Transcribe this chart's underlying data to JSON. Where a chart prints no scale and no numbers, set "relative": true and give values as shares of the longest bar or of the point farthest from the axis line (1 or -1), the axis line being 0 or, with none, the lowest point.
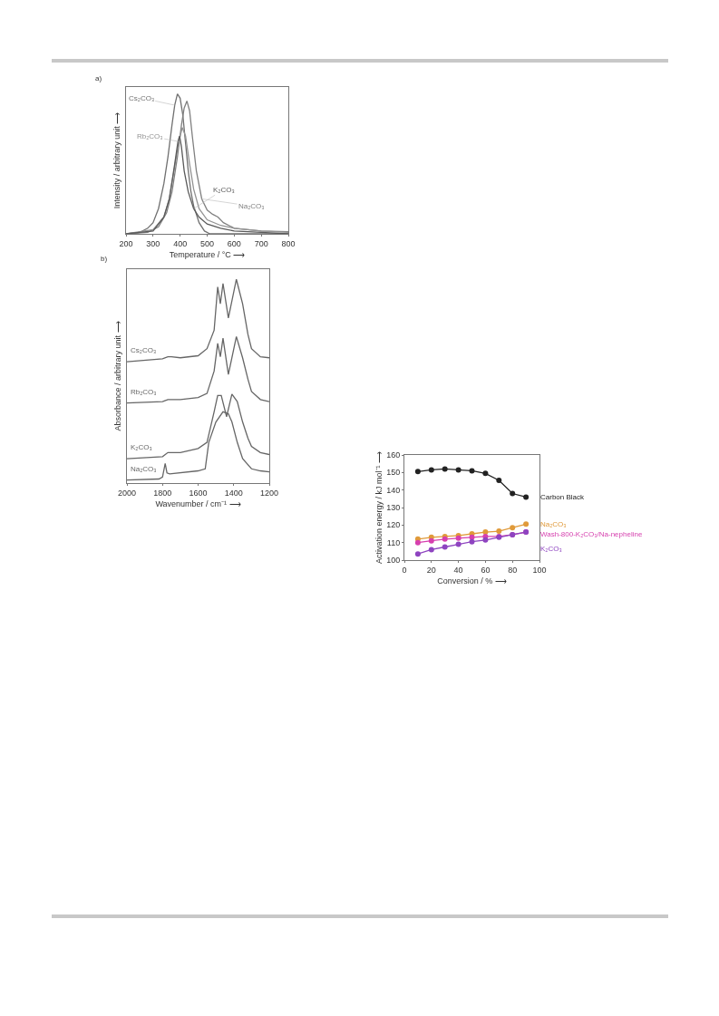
{
  "chart_data": [
    {
      "type": "line",
      "relative": true,
      "legend": false,
      "grid": false,
      "xlabel": "Temperature / °C ⟶",
      "ylabel": "Intensity / arbitrary unit ⟶",
      "xlim": [
        200,
        800
      ],
      "xticks": [
        200,
        300,
        400,
        500,
        600,
        700,
        800
      ],
      "annotations": [
        "a)"
      ],
      "series": [
        {
          "name": "Cs₂CO₃",
          "color": "#707070",
          "x": [
            200,
            250,
            280,
            300,
            320,
            340,
            355,
            370,
            380,
            390,
            400,
            410,
            420,
            430,
            440,
            450,
            470,
            490,
            510,
            800
          ],
          "values": [
            0,
            0.01,
            0.04,
            0.08,
            0.18,
            0.36,
            0.55,
            0.78,
            0.92,
            1,
            0.97,
            0.85,
            0.65,
            0.45,
            0.3,
            0.2,
            0.08,
            0.02,
            0,
            0
          ]
        },
        {
          "name": "Na₂CO₃",
          "color": "#808080",
          "x": [
            200,
            280,
            320,
            350,
            370,
            390,
            405,
            415,
            425,
            435,
            445,
            460,
            480,
            500,
            520,
            540,
            560,
            600,
            700,
            800
          ],
          "values": [
            0,
            0.01,
            0.05,
            0.15,
            0.3,
            0.55,
            0.78,
            0.9,
            0.95,
            0.88,
            0.7,
            0.45,
            0.25,
            0.17,
            0.14,
            0.12,
            0.08,
            0.04,
            0.02,
            0.015
          ]
        },
        {
          "name": "Rb₂CO₃",
          "color": "#939393",
          "x": [
            200,
            300,
            340,
            360,
            380,
            395,
            408,
            420,
            435,
            450,
            470,
            500,
            550,
            600,
            700,
            800
          ],
          "values": [
            0,
            0.03,
            0.12,
            0.25,
            0.48,
            0.66,
            0.76,
            0.7,
            0.5,
            0.32,
            0.18,
            0.1,
            0.06,
            0.04,
            0.02,
            0.01
          ]
        },
        {
          "name": "K₂CO₃",
          "color": "#5a5a5a",
          "x": [
            200,
            300,
            340,
            360,
            380,
            392,
            398,
            405,
            415,
            430,
            450,
            470,
            500,
            550,
            600,
            700,
            800
          ],
          "values": [
            0,
            0.02,
            0.12,
            0.25,
            0.5,
            0.66,
            0.7,
            0.62,
            0.45,
            0.3,
            0.18,
            0.12,
            0.07,
            0.04,
            0.02,
            0.01,
            0
          ]
        }
      ]
    },
    {
      "type": "line",
      "relative": true,
      "legend": false,
      "grid": false,
      "xlabel": "Wavenumber / cm⁻¹ ⟶",
      "ylabel": "Absorbance / arbitrary unit ⟶",
      "xlim": [
        2000,
        1200
      ],
      "xticks": [
        2000,
        1800,
        1600,
        1400,
        1200
      ],
      "annotations": [
        "b)"
      ],
      "series": [
        {
          "name": "Cs₂CO₃",
          "color": "#666666",
          "x": [
            2000,
            1800,
            1770,
            1750,
            1700,
            1600,
            1550,
            1510,
            1490,
            1475,
            1460,
            1430,
            1385,
            1350,
            1320,
            1300,
            1250,
            1200
          ],
          "values": [
            0.596,
            0.61,
            0.62,
            0.62,
            0.615,
            0.625,
            0.66,
            0.75,
            0.963,
            0.88,
            0.98,
            0.81,
            1,
            0.88,
            0.73,
            0.66,
            0.62,
            0.615
          ]
        },
        {
          "name": "Rb₂CO₃",
          "color": "#666666",
          "x": [
            2000,
            1800,
            1770,
            1750,
            1700,
            1600,
            1550,
            1510,
            1490,
            1475,
            1460,
            1430,
            1385,
            1350,
            1320,
            1300,
            1250,
            1200
          ],
          "values": [
            0.393,
            0.4,
            0.41,
            0.41,
            0.41,
            0.42,
            0.44,
            0.55,
            0.686,
            0.62,
            0.711,
            0.533,
            0.719,
            0.615,
            0.51,
            0.45,
            0.41,
            0.4
          ]
        },
        {
          "name": "K₂CO₃",
          "color": "#666666",
          "x": [
            2000,
            1800,
            1770,
            1750,
            1700,
            1600,
            1550,
            1510,
            1490,
            1470,
            1440,
            1410,
            1380,
            1350,
            1320,
            1300,
            1250,
            1200
          ],
          "values": [
            0.12,
            0.13,
            0.15,
            0.15,
            0.15,
            0.17,
            0.2,
            0.35,
            0.43,
            0.43,
            0.326,
            0.437,
            0.4,
            0.3,
            0.22,
            0.18,
            0.15,
            0.14
          ]
        },
        {
          "name": "Na₂CO₃",
          "color": "#666666",
          "x": [
            2000,
            1820,
            1800,
            1785,
            1775,
            1760,
            1600,
            1560,
            1540,
            1500,
            1460,
            1430,
            1410,
            1380,
            1350,
            1300,
            1250,
            1200
          ],
          "values": [
            0.015,
            0.02,
            0.03,
            0.096,
            0.05,
            0.045,
            0.06,
            0.07,
            0.2,
            0.3,
            0.35,
            0.34,
            0.3,
            0.2,
            0.12,
            0.07,
            0.06,
            0.055
          ]
        }
      ]
    },
    {
      "type": "line",
      "marker": "circle",
      "legend": false,
      "grid": false,
      "xlabel": "Conversion / % ⟶",
      "ylabel": "Activation energy / kJ mol⁻¹ ⟶",
      "xlim": [
        0,
        100
      ],
      "xticks": [
        0,
        20,
        40,
        60,
        80,
        100
      ],
      "ylim": [
        100,
        160
      ],
      "yticks": [
        100,
        110,
        120,
        130,
        140,
        150,
        160
      ],
      "x": [
        10,
        20,
        30,
        40,
        50,
        60,
        70,
        80,
        90
      ],
      "series": [
        {
          "name": "Carbon Black",
          "color": "#222222",
          "values": [
            150.5,
            151.5,
            152,
            151.5,
            151,
            149.5,
            145.5,
            138,
            136
          ]
        },
        {
          "name": "Na₂CO₃",
          "color": "#e09a3a",
          "values": [
            112,
            113,
            113.5,
            114,
            115,
            116,
            116.5,
            118.5,
            120.5
          ]
        },
        {
          "name": "Wash-800-K₂CO₃/Na-nepheline",
          "color": "#d63fae",
          "values": [
            110,
            111,
            112,
            112.5,
            113,
            113.5,
            113.5,
            114.5,
            116
          ]
        },
        {
          "name": "K₂CO₃",
          "color": "#8e44c0",
          "values": [
            103.5,
            106,
            107.5,
            109,
            110.5,
            111.5,
            113,
            114.5,
            116
          ]
        }
      ]
    }
  ]
}
